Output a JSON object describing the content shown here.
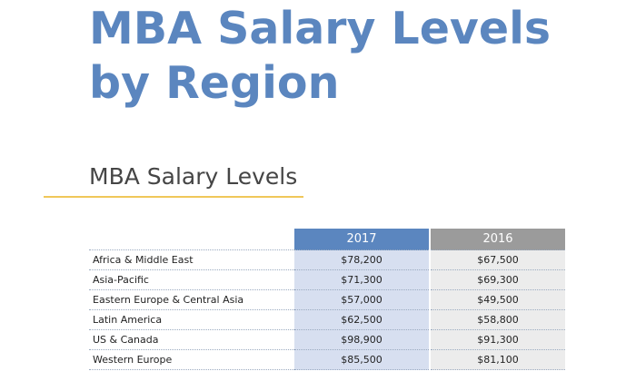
{
  "title": {
    "line1": "MBA Salary Levels",
    "line2": "by Region"
  },
  "section": {
    "title": "MBA Salary Levels"
  },
  "table": {
    "headers": {
      "year_2017": "2017",
      "year_2016": "2016"
    },
    "rows": [
      {
        "region": "Africa & Middle East",
        "v2017": "$78,200",
        "v2016": "$67,500"
      },
      {
        "region": "Asia-Pacific",
        "v2017": "$71,300",
        "v2016": "$69,300"
      },
      {
        "region": "Eastern Europe & Central Asia",
        "v2017": "$57,000",
        "v2016": "$49,500"
      },
      {
        "region": "Latin America",
        "v2017": "$62,500",
        "v2016": "$58,800"
      },
      {
        "region": "US & Canada",
        "v2017": "$98,900",
        "v2016": "$91,300"
      },
      {
        "region": "Western Europe",
        "v2017": "$85,500",
        "v2016": "$81,100"
      }
    ]
  },
  "colors": {
    "title_blue": "#5b86bf",
    "accent_rule": "#f0c75a",
    "header_2017": "#5b86bf",
    "header_2016": "#9b9b9b",
    "cell_2017": "#d7dff0",
    "cell_2016": "#ececec"
  }
}
